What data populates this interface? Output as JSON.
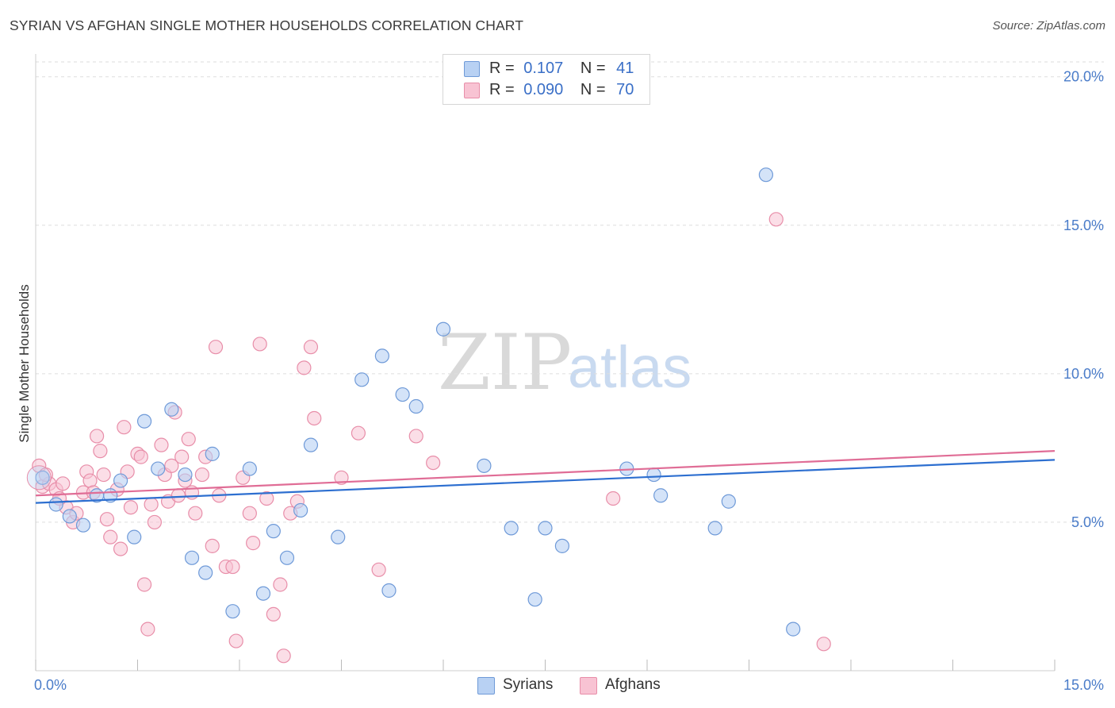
{
  "header": {
    "title": "SYRIAN VS AFGHAN SINGLE MOTHER HOUSEHOLDS CORRELATION CHART",
    "source": "Source: ZipAtlas.com"
  },
  "watermark": {
    "zip": "ZIP",
    "atlas": "atlas"
  },
  "legend": {
    "syrians": {
      "r_label": "R =",
      "r_value": "0.107",
      "n_label": "N =",
      "n_value": "41"
    },
    "afghans": {
      "r_label": "R =",
      "r_value": "0.090",
      "n_label": "N =",
      "n_value": "70"
    }
  },
  "colors": {
    "syrians_fill": "#b8d1f3",
    "syrians_stroke": "#6f9ad8",
    "syrians_line": "#2d6fd0",
    "afghans_fill": "#f8c3d3",
    "afghans_stroke": "#e88ea9",
    "afghans_line": "#e06d96",
    "grid": "#dddddd",
    "tick_text": "#4a7cc9"
  },
  "chart_data": {
    "type": "scatter",
    "title": "SYRIAN VS AFGHAN SINGLE MOTHER HOUSEHOLDS CORRELATION CHART",
    "xlabel": "",
    "ylabel": "Single Mother Households",
    "xlim": [
      0,
      15
    ],
    "ylim": [
      0,
      20.5
    ],
    "x_tick_labels": [
      "0.0%",
      "15.0%"
    ],
    "y_ticks": [
      5,
      10,
      15,
      20
    ],
    "y_tick_labels": [
      "5.0%",
      "10.0%",
      "15.0%",
      "20.0%"
    ],
    "legend": [
      "Syrians",
      "Afghans"
    ],
    "series": [
      {
        "name": "Syrians",
        "r": 0.107,
        "n": 41,
        "trend": {
          "x": [
            0,
            15
          ],
          "y": [
            5.65,
            7.1
          ]
        },
        "points": [
          [
            0.1,
            6.5
          ],
          [
            0.3,
            5.6
          ],
          [
            0.5,
            5.2
          ],
          [
            0.7,
            4.9
          ],
          [
            0.9,
            5.9
          ],
          [
            1.1,
            5.9
          ],
          [
            1.25,
            6.4
          ],
          [
            1.45,
            4.5
          ],
          [
            1.6,
            8.4
          ],
          [
            1.8,
            6.8
          ],
          [
            2.0,
            8.8
          ],
          [
            2.2,
            6.6
          ],
          [
            2.3,
            3.8
          ],
          [
            2.5,
            3.3
          ],
          [
            2.6,
            7.3
          ],
          [
            2.9,
            2.0
          ],
          [
            3.15,
            6.8
          ],
          [
            3.35,
            2.6
          ],
          [
            3.5,
            4.7
          ],
          [
            3.7,
            3.8
          ],
          [
            3.9,
            5.4
          ],
          [
            4.05,
            7.6
          ],
          [
            4.45,
            4.5
          ],
          [
            4.8,
            9.8
          ],
          [
            5.1,
            10.6
          ],
          [
            5.2,
            2.7
          ],
          [
            5.4,
            9.3
          ],
          [
            5.6,
            8.9
          ],
          [
            6.0,
            11.5
          ],
          [
            6.6,
            6.9
          ],
          [
            7.0,
            4.8
          ],
          [
            7.35,
            2.4
          ],
          [
            7.5,
            4.8
          ],
          [
            7.75,
            4.2
          ],
          [
            8.7,
            6.8
          ],
          [
            9.1,
            6.6
          ],
          [
            9.2,
            5.9
          ],
          [
            10.0,
            4.8
          ],
          [
            10.2,
            5.7
          ],
          [
            10.75,
            16.7
          ],
          [
            11.15,
            1.4
          ]
        ]
      },
      {
        "name": "Afghans",
        "r": 0.09,
        "n": 70,
        "trend": {
          "x": [
            0,
            15
          ],
          "y": [
            5.9,
            7.4
          ]
        },
        "points": [
          [
            0.05,
            6.9
          ],
          [
            0.1,
            6.2
          ],
          [
            0.2,
            6.3
          ],
          [
            0.3,
            6.1
          ],
          [
            0.4,
            6.3
          ],
          [
            0.45,
            5.5
          ],
          [
            0.55,
            5.0
          ],
          [
            0.6,
            5.3
          ],
          [
            0.7,
            6.0
          ],
          [
            0.75,
            6.7
          ],
          [
            0.8,
            6.4
          ],
          [
            0.9,
            7.9
          ],
          [
            0.95,
            7.4
          ],
          [
            1.0,
            6.6
          ],
          [
            1.05,
            5.1
          ],
          [
            1.1,
            4.5
          ],
          [
            1.2,
            6.1
          ],
          [
            1.25,
            4.1
          ],
          [
            1.3,
            8.2
          ],
          [
            1.35,
            6.7
          ],
          [
            1.4,
            5.5
          ],
          [
            1.5,
            7.3
          ],
          [
            1.55,
            7.2
          ],
          [
            1.6,
            2.9
          ],
          [
            1.65,
            1.4
          ],
          [
            1.7,
            5.6
          ],
          [
            1.75,
            5.0
          ],
          [
            1.85,
            7.6
          ],
          [
            1.9,
            6.6
          ],
          [
            1.95,
            5.7
          ],
          [
            2.0,
            6.9
          ],
          [
            2.05,
            8.7
          ],
          [
            2.15,
            7.2
          ],
          [
            2.2,
            6.4
          ],
          [
            2.25,
            7.8
          ],
          [
            2.3,
            6.0
          ],
          [
            2.35,
            5.3
          ],
          [
            2.45,
            6.6
          ],
          [
            2.5,
            7.2
          ],
          [
            2.6,
            4.2
          ],
          [
            2.65,
            10.9
          ],
          [
            2.7,
            5.9
          ],
          [
            2.8,
            3.5
          ],
          [
            2.9,
            3.5
          ],
          [
            2.95,
            1.0
          ],
          [
            3.05,
            6.5
          ],
          [
            3.15,
            5.3
          ],
          [
            3.2,
            4.3
          ],
          [
            3.3,
            11.0
          ],
          [
            3.4,
            5.8
          ],
          [
            3.5,
            1.9
          ],
          [
            3.6,
            2.9
          ],
          [
            3.65,
            0.5
          ],
          [
            3.75,
            5.3
          ],
          [
            3.85,
            5.7
          ],
          [
            3.95,
            10.2
          ],
          [
            4.05,
            10.9
          ],
          [
            4.1,
            8.5
          ],
          [
            4.5,
            6.5
          ],
          [
            4.75,
            8.0
          ],
          [
            5.05,
            3.4
          ],
          [
            5.6,
            7.9
          ],
          [
            5.85,
            7.0
          ],
          [
            8.5,
            5.8
          ],
          [
            10.9,
            15.2
          ],
          [
            11.6,
            0.9
          ],
          [
            0.15,
            6.6
          ],
          [
            0.35,
            5.8
          ],
          [
            0.85,
            6.0
          ],
          [
            2.1,
            5.9
          ]
        ]
      }
    ]
  },
  "ylabel": "Single Mother Households",
  "bottom_legend": {
    "syrians": "Syrians",
    "afghans": "Afghans"
  }
}
